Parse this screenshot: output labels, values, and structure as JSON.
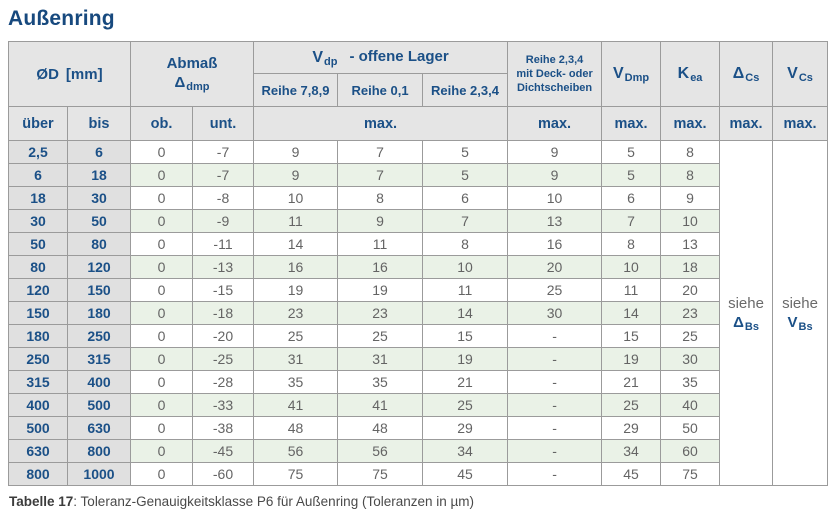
{
  "page": {
    "title": "Außenring",
    "caption": {
      "label": "Tabelle 17",
      "text": ": Toleranz-Genauigkeitsklasse P6 für Außenring (Toleranzen in µm)"
    }
  },
  "colors": {
    "accent_blue": "#1b5087",
    "header_bg": "#e5e5e5",
    "range_col_bg": "#e0e0e0",
    "stripe_green": "#eaf2e7",
    "border_gray": "#9b9b9b",
    "value_text": "#646464"
  },
  "table": {
    "header": {
      "diameter": {
        "symbol": "ØD",
        "unit": "[mm]"
      },
      "abmass": {
        "title": "Abmaß",
        "symbol": "Δ",
        "sub": "dmp"
      },
      "vdp_group": {
        "symbol": "V",
        "sub": "dp",
        "rest": "-  offene Lager"
      },
      "reihe_cols": [
        "Reihe 7,8,9",
        "Reihe 0,1",
        "Reihe 2,3,4"
      ],
      "sealed": {
        "line1": "Reihe 2,3,4",
        "line2": "mit Deck- oder",
        "line3": "Dichtscheiben"
      },
      "vdmp": {
        "symbol": "V",
        "sub": "Dmp"
      },
      "kea": {
        "symbol": "K",
        "sub": "ea"
      },
      "delta_cs": {
        "symbol": "Δ",
        "sub": "Cs"
      },
      "v_cs": {
        "symbol": "V",
        "sub": "Cs"
      }
    },
    "subheader": {
      "ueber": "über",
      "bis": "bis",
      "ob": "ob.",
      "unt": "unt.",
      "max": "max."
    },
    "see_delta_bs": {
      "prefix": "siehe",
      "symbol": "Δ",
      "sub": "Bs"
    },
    "see_v_bs": {
      "prefix": "siehe",
      "symbol": "V",
      "sub": "Bs"
    },
    "rows": [
      {
        "ueber": "2,5",
        "bis": "6",
        "values": [
          "0",
          "-7",
          "9",
          "7",
          "5",
          "9",
          "5",
          "8"
        ]
      },
      {
        "ueber": "6",
        "bis": "18",
        "values": [
          "0",
          "-7",
          "9",
          "7",
          "5",
          "9",
          "5",
          "8"
        ]
      },
      {
        "ueber": "18",
        "bis": "30",
        "values": [
          "0",
          "-8",
          "10",
          "8",
          "6",
          "10",
          "6",
          "9"
        ]
      },
      {
        "ueber": "30",
        "bis": "50",
        "values": [
          "0",
          "-9",
          "11",
          "9",
          "7",
          "13",
          "7",
          "10"
        ]
      },
      {
        "ueber": "50",
        "bis": "80",
        "values": [
          "0",
          "-11",
          "14",
          "11",
          "8",
          "16",
          "8",
          "13"
        ]
      },
      {
        "ueber": "80",
        "bis": "120",
        "values": [
          "0",
          "-13",
          "16",
          "16",
          "10",
          "20",
          "10",
          "18"
        ]
      },
      {
        "ueber": "120",
        "bis": "150",
        "values": [
          "0",
          "-15",
          "19",
          "19",
          "11",
          "25",
          "11",
          "20"
        ]
      },
      {
        "ueber": "150",
        "bis": "180",
        "values": [
          "0",
          "-18",
          "23",
          "23",
          "14",
          "30",
          "14",
          "23"
        ]
      },
      {
        "ueber": "180",
        "bis": "250",
        "values": [
          "0",
          "-20",
          "25",
          "25",
          "15",
          "-",
          "15",
          "25"
        ]
      },
      {
        "ueber": "250",
        "bis": "315",
        "values": [
          "0",
          "-25",
          "31",
          "31",
          "19",
          "-",
          "19",
          "30"
        ]
      },
      {
        "ueber": "315",
        "bis": "400",
        "values": [
          "0",
          "-28",
          "35",
          "35",
          "21",
          "-",
          "21",
          "35"
        ]
      },
      {
        "ueber": "400",
        "bis": "500",
        "values": [
          "0",
          "-33",
          "41",
          "41",
          "25",
          "-",
          "25",
          "40"
        ]
      },
      {
        "ueber": "500",
        "bis": "630",
        "values": [
          "0",
          "-38",
          "48",
          "48",
          "29",
          "-",
          "29",
          "50"
        ]
      },
      {
        "ueber": "630",
        "bis": "800",
        "values": [
          "0",
          "-45",
          "56",
          "56",
          "34",
          "-",
          "34",
          "60"
        ]
      },
      {
        "ueber": "800",
        "bis": "1000",
        "values": [
          "0",
          "-60",
          "75",
          "75",
          "45",
          "-",
          "45",
          "75"
        ]
      }
    ]
  }
}
